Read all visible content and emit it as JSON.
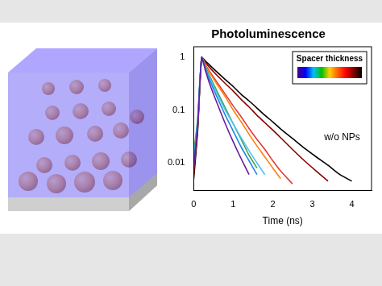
{
  "chart_data": {
    "type": "line",
    "title": "Photoluminescence",
    "x_label": "Time (ns)",
    "x": [
      0,
      0.1,
      0.2,
      0.3,
      0.4,
      0.6,
      0.8,
      1.0,
      1.2,
      1.4,
      1.6,
      1.8,
      2.0,
      2.2,
      2.5,
      2.8,
      3.1,
      3.4,
      3.7,
      4.0,
      4.3
    ],
    "series": [
      {
        "color": "#6a1b9a",
        "values": [
          0.008,
          0.05,
          1,
          0.55,
          0.32,
          0.13,
          0.055,
          0.025,
          0.012,
          0.006,
          null,
          null,
          null,
          null,
          null,
          null,
          null,
          null,
          null,
          null,
          null
        ]
      },
      {
        "color": "#1e88e5",
        "values": [
          0.01,
          0.06,
          1,
          0.6,
          0.38,
          0.17,
          0.08,
          0.04,
          0.02,
          0.011,
          0.006,
          null,
          null,
          null,
          null,
          null,
          null,
          null,
          null,
          null,
          null
        ]
      },
      {
        "color": "#4fc3f7",
        "values": [
          0.012,
          0.06,
          1,
          0.62,
          0.42,
          0.2,
          0.1,
          0.055,
          0.03,
          0.017,
          0.01,
          0.006,
          null,
          null,
          null,
          null,
          null,
          null,
          null,
          null,
          null
        ]
      },
      {
        "color": "#43a047",
        "values": [
          0.015,
          0.07,
          1,
          0.65,
          0.45,
          0.22,
          0.11,
          0.055,
          0.028,
          0.014,
          0.008,
          null,
          null,
          null,
          null,
          null,
          null,
          null,
          null,
          null,
          null
        ]
      },
      {
        "color": "#ff7f0e",
        "values": [
          0.01,
          0.06,
          1,
          0.7,
          0.52,
          0.3,
          0.18,
          0.1,
          0.06,
          0.035,
          0.021,
          0.013,
          0.008,
          0.005,
          null,
          null,
          null,
          null,
          null,
          null,
          null
        ]
      },
      {
        "color": "#e53935",
        "values": [
          0.008,
          0.05,
          1,
          0.72,
          0.55,
          0.33,
          0.2,
          0.12,
          0.075,
          0.045,
          0.028,
          0.018,
          0.011,
          0.007,
          0.004,
          null,
          null,
          null,
          null,
          null,
          null
        ]
      },
      {
        "color": "#8b0000",
        "values": [
          0.006,
          0.05,
          1,
          0.8,
          0.65,
          0.45,
          0.32,
          0.23,
          0.16,
          0.115,
          0.08,
          0.058,
          0.042,
          0.03,
          0.018,
          0.011,
          0.007,
          0.0045,
          null,
          null,
          null
        ]
      },
      {
        "color": "#000000",
        "values": [
          0.005,
          0.04,
          1,
          0.85,
          0.72,
          0.52,
          0.38,
          0.28,
          0.2,
          0.15,
          0.11,
          0.08,
          0.06,
          0.044,
          0.029,
          0.019,
          0.013,
          0.009,
          0.006,
          0.0045,
          null
        ]
      }
    ],
    "xlim": [
      0,
      4.5
    ],
    "xticks": [
      0,
      1,
      2,
      3,
      4
    ],
    "ylim": [
      0.003,
      1.6
    ],
    "yticks": [
      0.01,
      0.1,
      1
    ],
    "log": "y",
    "grid": false,
    "legend": "upper right",
    "colorbar": {
      "title": "Spacer thickness",
      "colors": [
        "#4b0082",
        "#0000ff",
        "#00c0ff",
        "#00c000",
        "#ffd000",
        "#ff6000",
        "#ff0000",
        "#800000",
        "#000000"
      ]
    },
    "annotations": [
      {
        "text": "w/o NPs",
        "x": 3.3,
        "y": 0.03
      }
    ]
  }
}
